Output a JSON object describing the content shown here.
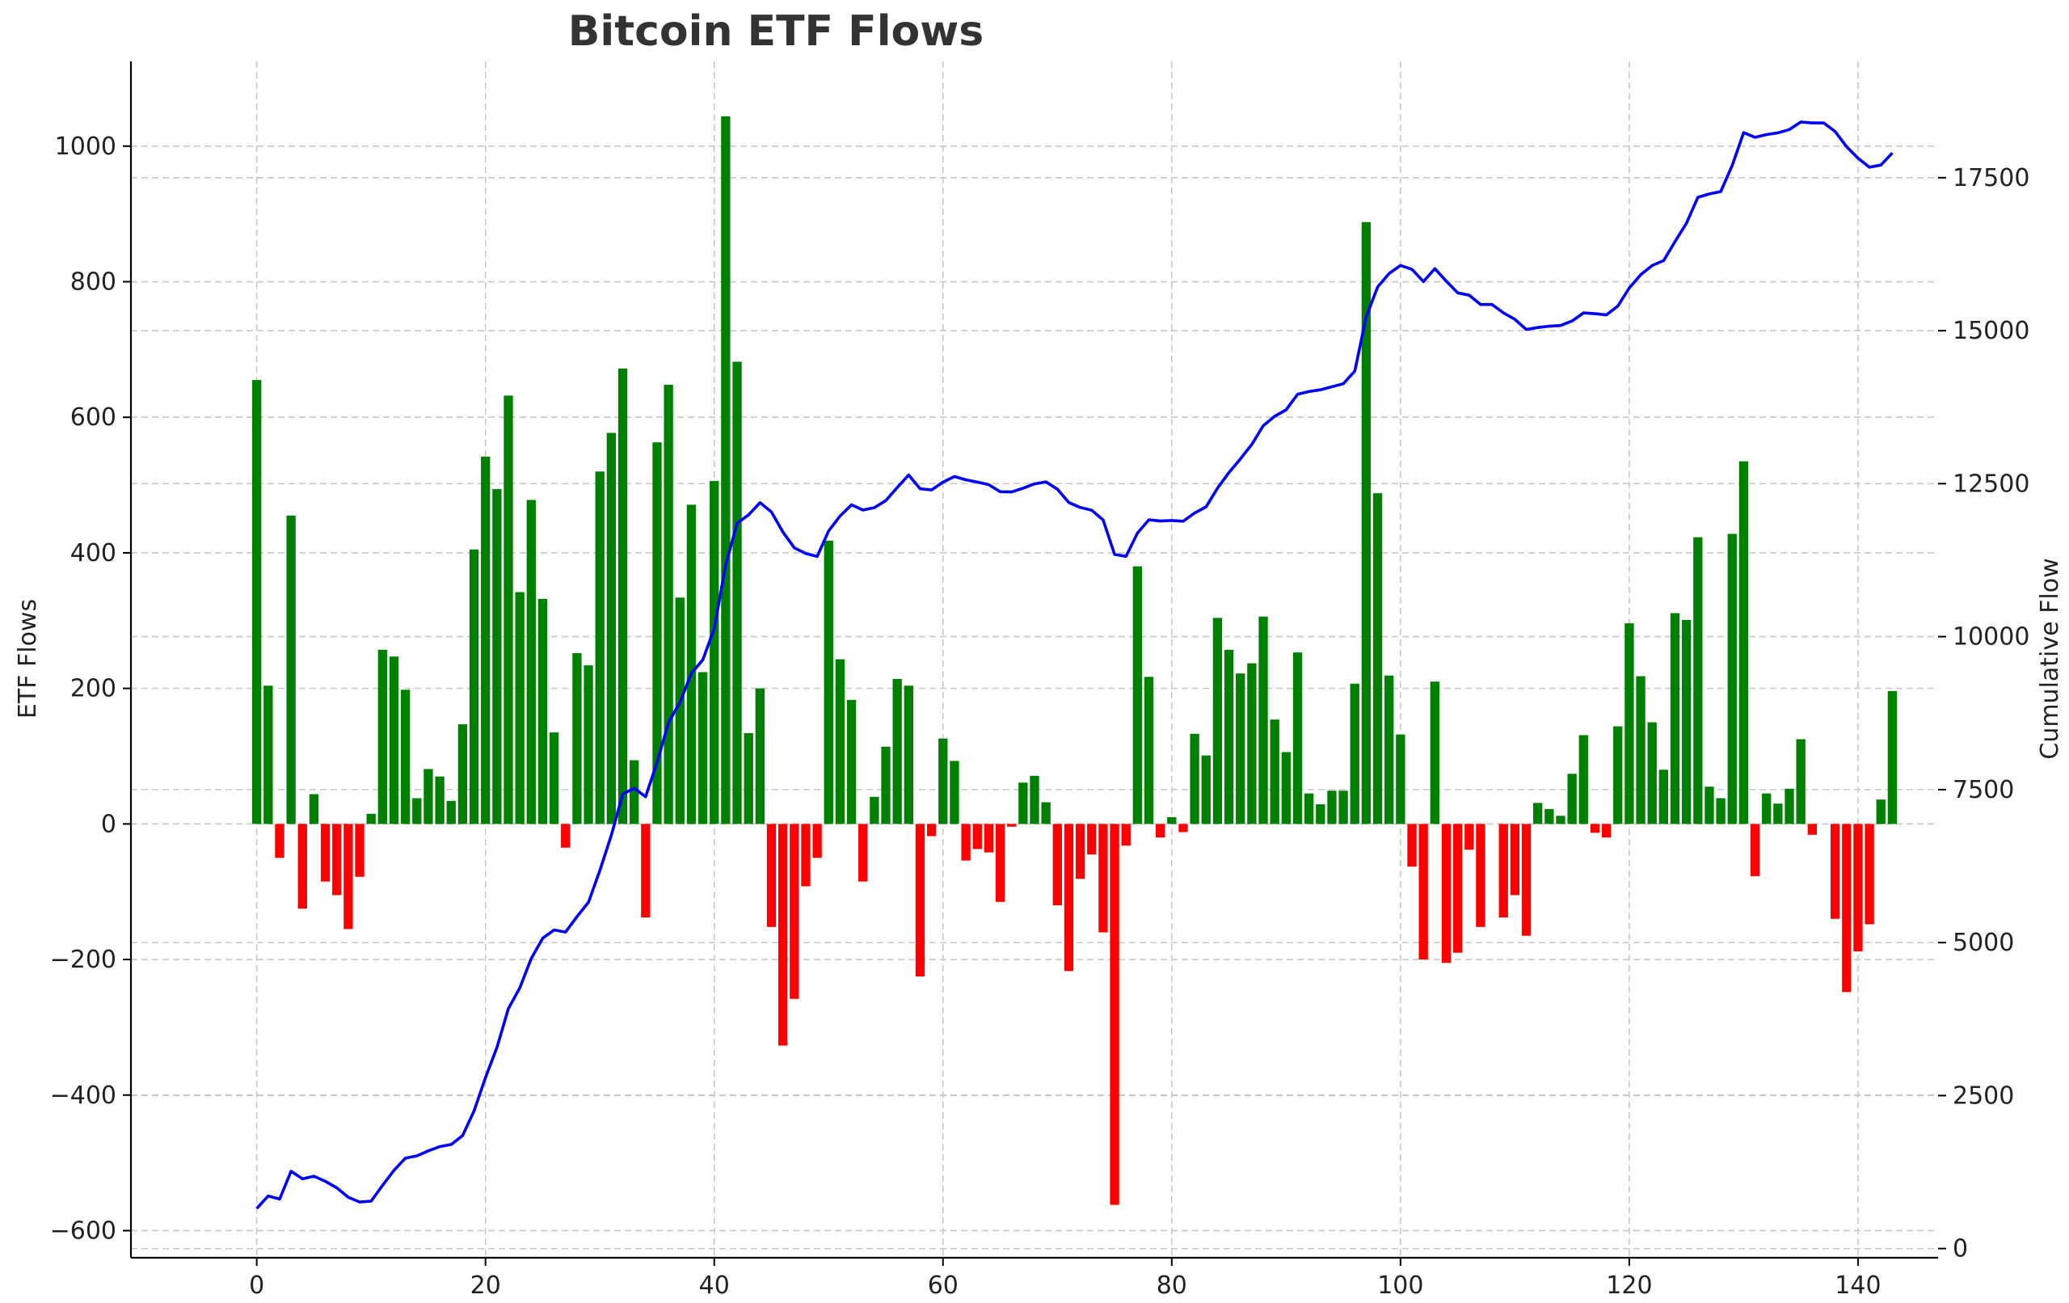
{
  "chart_data": {
    "type": "bar",
    "title": "Bitcoin ETF Flows",
    "xlabel": "",
    "ylabel": "ETF Flows",
    "y2label": "Cumulative Flow",
    "xlim": [
      -11,
      147
    ],
    "ylim": [
      -640,
      1125
    ],
    "y2lim": [
      -150,
      19400
    ],
    "xticks": [
      0,
      20,
      40,
      60,
      80,
      100,
      120,
      140
    ],
    "yticks": [
      -600,
      -400,
      -200,
      0,
      200,
      400,
      600,
      800,
      1000
    ],
    "y2ticks": [
      0,
      2500,
      5000,
      7500,
      10000,
      12500,
      15000,
      17500
    ],
    "grid": true,
    "colors": {
      "positive": "#008000",
      "negative": "#ff0000",
      "cumulative_line": "#0000ff",
      "title": "#333333"
    },
    "series": [
      {
        "name": "ETF Flows",
        "axis": "left",
        "type": "bar",
        "x": [
          0,
          1,
          2,
          3,
          4,
          5,
          6,
          7,
          8,
          9,
          10,
          11,
          12,
          13,
          14,
          15,
          16,
          17,
          18,
          19,
          20,
          21,
          22,
          23,
          24,
          25,
          26,
          27,
          28,
          29,
          30,
          31,
          32,
          33,
          34,
          35,
          36,
          37,
          38,
          39,
          40,
          41,
          42,
          43,
          44,
          45,
          46,
          47,
          48,
          49,
          50,
          51,
          52,
          53,
          54,
          55,
          56,
          57,
          58,
          59,
          60,
          61,
          62,
          63,
          64,
          65,
          66,
          67,
          68,
          69,
          70,
          71,
          72,
          73,
          74,
          75,
          76,
          77,
          78,
          79,
          80,
          81,
          82,
          83,
          84,
          85,
          86,
          87,
          88,
          89,
          90,
          91,
          92,
          93,
          94,
          95,
          96,
          97,
          98,
          99,
          100,
          101,
          102,
          103,
          104,
          105,
          106,
          107,
          108,
          109,
          110,
          111,
          112,
          113,
          114,
          115,
          116,
          117,
          118,
          119,
          120,
          121,
          122,
          123,
          124,
          125,
          126,
          127,
          128,
          129,
          130,
          131,
          132,
          133,
          134,
          135,
          136,
          137,
          138,
          139,
          140,
          141,
          142,
          143
        ],
        "values": [
          655,
          204,
          -50,
          455,
          -125,
          44,
          -85,
          -105,
          -155,
          -78,
          15,
          257,
          247,
          198,
          38,
          81,
          70,
          34,
          147,
          405,
          542,
          494,
          632,
          342,
          478,
          332,
          135,
          -35,
          252,
          234,
          520,
          577,
          672,
          94,
          -138,
          563,
          648,
          334,
          471,
          224,
          506,
          1044,
          682,
          134,
          200,
          -152,
          -327,
          -258,
          -92,
          -50,
          418,
          243,
          183,
          -85,
          40,
          114,
          214,
          204,
          -225,
          -18,
          126,
          93,
          -54,
          -37,
          -42,
          -115,
          -4,
          61,
          71,
          32,
          -120,
          -217,
          -81,
          -45,
          -160,
          -562,
          -32,
          380,
          217,
          -20,
          10,
          -12,
          133,
          101,
          304,
          257,
          222,
          237,
          306,
          154,
          106,
          253,
          45,
          29,
          49,
          49,
          207,
          888,
          488,
          219,
          132,
          -63,
          -200,
          210,
          -205,
          -190,
          -38,
          -152,
          0,
          -138,
          -105,
          -165,
          31,
          22,
          12,
          74,
          131,
          -13,
          -20,
          144,
          296,
          218,
          150,
          80,
          311,
          301,
          423,
          55,
          38,
          428,
          535,
          -77,
          45,
          30,
          52,
          125,
          -16,
          0,
          -140,
          -248,
          -188,
          -148,
          36,
          196
        ]
      },
      {
        "name": "Cumulative Flow",
        "axis": "right",
        "type": "line",
        "x": [
          0,
          1,
          2,
          3,
          4,
          5,
          6,
          7,
          8,
          9,
          10,
          11,
          12,
          13,
          14,
          15,
          16,
          17,
          18,
          19,
          20,
          21,
          22,
          23,
          24,
          25,
          26,
          27,
          28,
          29,
          30,
          31,
          32,
          33,
          34,
          35,
          36,
          37,
          38,
          39,
          40,
          41,
          42,
          43,
          44,
          45,
          46,
          47,
          48,
          49,
          50,
          51,
          52,
          53,
          54,
          55,
          56,
          57,
          58,
          59,
          60,
          61,
          62,
          63,
          64,
          65,
          66,
          67,
          68,
          69,
          70,
          71,
          72,
          73,
          74,
          75,
          76,
          77,
          78,
          79,
          80,
          81,
          82,
          83,
          84,
          85,
          86,
          87,
          88,
          89,
          90,
          91,
          92,
          93,
          94,
          95,
          96,
          97,
          98,
          99,
          100,
          101,
          102,
          103,
          104,
          105,
          106,
          107,
          108,
          109,
          110,
          111,
          112,
          113,
          114,
          115,
          116,
          117,
          118,
          119,
          120,
          121,
          122,
          123,
          124,
          125,
          126,
          127,
          128,
          129,
          130,
          131,
          132,
          133,
          134,
          135,
          136,
          137,
          138,
          139,
          140,
          141,
          142,
          143
        ],
        "values": [
          655,
          859,
          809,
          1264,
          1139,
          1183,
          1098,
          993,
          838,
          760,
          775,
          1032,
          1279,
          1477,
          1515,
          1596,
          1666,
          1700,
          1847,
          2252,
          2794,
          3288,
          3920,
          4262,
          4740,
          5072,
          5207,
          5172,
          5424,
          5658,
          6178,
          6755,
          7427,
          7521,
          7383,
          7946,
          8594,
          8928,
          9399,
          9623,
          10129,
          11173,
          11855,
          11989,
          12189,
          12037,
          11710,
          11452,
          11360,
          11310,
          11728,
          11971,
          12154,
          12069,
          12109,
          12223,
          12437,
          12641,
          12416,
          12398,
          12524,
          12617,
          12563,
          12526,
          12484,
          12369,
          12365,
          12426,
          12497,
          12529,
          12409,
          12192,
          12111,
          12066,
          11906,
          11344,
          11312,
          11692,
          11909,
          11889,
          11899,
          11887,
          12020,
          12121,
          12425,
          12682,
          12904,
          13141,
          13447,
          13601,
          13707,
          13960,
          14005,
          14034,
          14083,
          14132,
          14339,
          15227,
          15715,
          15934,
          16066,
          16003,
          15803,
          16013,
          15808,
          15618,
          15580,
          15428,
          15428,
          15290,
          15185,
          15020,
          15051,
          15073,
          15085,
          15159,
          15290,
          15277,
          15257,
          15401,
          15697,
          15915,
          16065,
          16145,
          16456,
          16757,
          17180,
          17235,
          17273,
          17701,
          18236,
          18159,
          18204,
          18234,
          18286,
          18411,
          18395,
          18395,
          18255,
          18007,
          17819,
          17671,
          17707,
          17903
        ]
      }
    ]
  }
}
